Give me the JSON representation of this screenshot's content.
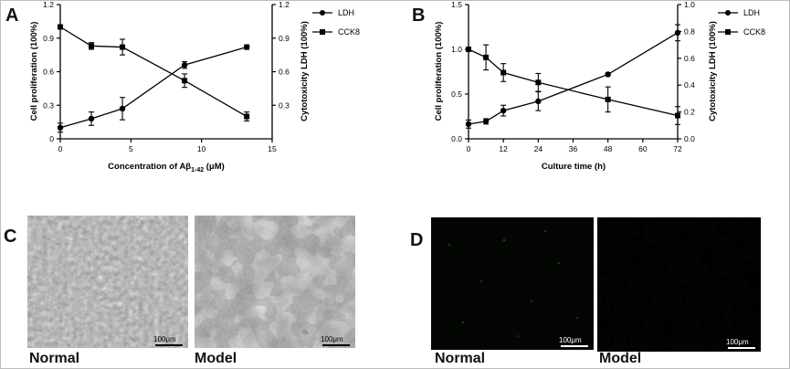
{
  "panels": {
    "a_letter": "A",
    "b_letter": "B",
    "c_letter": "C",
    "d_letter": "D"
  },
  "chart_data": [
    {
      "id": "A",
      "type": "line",
      "xlabel_prefix": "Concentration of Aβ",
      "xlabel_sub": "1-42",
      "xlabel_suffix": " (μM)",
      "ylabel": "Cell proliferation (100%)",
      "y2label": "Cytotoxicity LDH (100%)",
      "xlim": [
        0,
        15
      ],
      "xticks": [
        0,
        5,
        10,
        15
      ],
      "ylim": [
        0,
        1.2
      ],
      "yticks": [
        0,
        0.3,
        0.6,
        0.9,
        1.2
      ],
      "ytick_labels": [
        "0",
        "0.3",
        "0.6",
        "0.9",
        "1.2"
      ],
      "y2lim": [
        0,
        1.2
      ],
      "y2ticks": [
        0.3,
        0.6,
        0.9,
        1.2
      ],
      "y2tick_labels": [
        "0.3",
        "0.6",
        "0.9",
        "1.2"
      ],
      "legend_position": "top-right",
      "series": [
        {
          "name": "LDH",
          "marker": "circle",
          "axis": "right",
          "x": [
            0,
            2.2,
            4.4,
            8.8,
            13.2
          ],
          "y": [
            0.1,
            0.18,
            0.27,
            0.66,
            0.82
          ],
          "err": [
            0.04,
            0.06,
            0.1,
            0.03,
            0.02
          ]
        },
        {
          "name": "CCK8",
          "marker": "square",
          "axis": "left",
          "x": [
            0,
            2.2,
            4.4,
            8.8,
            13.2
          ],
          "y": [
            1.0,
            0.83,
            0.82,
            0.52,
            0.2
          ],
          "err": [
            0.02,
            0.03,
            0.07,
            0.06,
            0.04
          ]
        }
      ]
    },
    {
      "id": "B",
      "type": "line",
      "xlabel": "Culture time (h)",
      "ylabel": "Cell proliferation (100%)",
      "y2label": "Cytotoxicity LDH (100%)",
      "xlim": [
        0,
        72
      ],
      "xticks": [
        0,
        12,
        24,
        36,
        48,
        60,
        72
      ],
      "ylim": [
        0,
        1.5
      ],
      "yticks": [
        0,
        0.5,
        1.0,
        1.5
      ],
      "ytick_labels": [
        "0.0",
        "0.5",
        "1.0",
        "1.5"
      ],
      "y2lim": [
        0,
        1.0
      ],
      "y2ticks": [
        0,
        0.2,
        0.4,
        0.6,
        0.8,
        1.0
      ],
      "y2tick_labels": [
        "0.0",
        "0.2",
        "0.4",
        "0.6",
        "0.8",
        "1.0"
      ],
      "legend_position": "top-right",
      "series": [
        {
          "name": "LDH",
          "marker": "circle",
          "axis": "right",
          "x": [
            0,
            6,
            12,
            24,
            48,
            72
          ],
          "y": [
            0.11,
            0.13,
            0.21,
            0.28,
            0.48,
            0.79
          ],
          "err": [
            0.03,
            0.02,
            0.04,
            0.07,
            0.01,
            0.06
          ]
        },
        {
          "name": "CCK8",
          "marker": "square",
          "axis": "left",
          "x": [
            0,
            6,
            12,
            24,
            48,
            72
          ],
          "y": [
            1.0,
            0.91,
            0.74,
            0.63,
            0.44,
            0.26
          ],
          "err": [
            0.02,
            0.14,
            0.1,
            0.1,
            0.14,
            0.1
          ]
        }
      ]
    }
  ],
  "images": {
    "c_normal_label": "Normal",
    "c_model_label": "Model",
    "d_normal_label": "Normal",
    "d_model_label": "Model",
    "c_normal_scale": "100μm",
    "c_model_scale": "100μm",
    "d_normal_scale": "100μm",
    "d_model_scale": "100μm"
  }
}
